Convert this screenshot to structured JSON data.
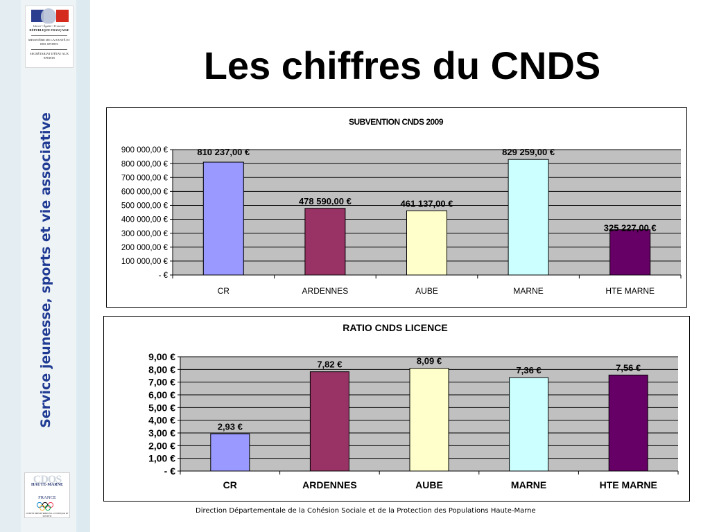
{
  "sidebar": {
    "logo_top": {
      "motto": "Liberté • Égalité • Fraternité",
      "republic": "RÉPUBLIQUE FRANÇAISE",
      "ministry": "MINISTÈRE DE LA SANTÉ ET DES SPORTS",
      "secretariat": "SECRÉTARIAT D'ÉTAT AUX SPORTS"
    },
    "vertical_title": "Service jeunesse, sports et vie associative",
    "logo_bottom": {
      "mark": "CDOS",
      "dept": "HAUTE-MARNE",
      "country": "FRANCE",
      "caption": "COMITÉ DÉPARTEMENTAL OLYMPIQUE ET SPORTIF"
    }
  },
  "slide": {
    "title": "Les chiffres du CNDS",
    "footer": "Direction Départementale de la Cohésion Sociale et de la Protection des Populations  Haute-Marne"
  },
  "colors": {
    "plot_bg": "#c0c0c0",
    "bars": [
      "#9999ff",
      "#993366",
      "#ffffcc",
      "#ccffff",
      "#660066"
    ]
  },
  "chart_data": [
    {
      "type": "bar",
      "title": "SUBVENTION CNDS 2009",
      "categories": [
        "CR",
        "ARDENNES",
        "AUBE",
        "MARNE",
        "HTE MARNE"
      ],
      "values": [
        810237,
        478590,
        461137,
        829259,
        325227
      ],
      "data_labels": [
        "810 237,00 €",
        "478 590,00 €",
        "461 137,00 €",
        "829 259,00 €",
        "325 227,00 €"
      ],
      "ylim": [
        0,
        900000
      ],
      "yticks": [
        0,
        100000,
        200000,
        300000,
        400000,
        500000,
        600000,
        700000,
        800000,
        900000
      ],
      "ytick_labels": [
        "-   €",
        "100 000,00 €",
        "200 000,00 €",
        "300 000,00 €",
        "400 000,00 €",
        "500 000,00 €",
        "600 000,00 €",
        "700 000,00 €",
        "800 000,00 €",
        "900 000,00 €"
      ],
      "grid": true,
      "legend": "none"
    },
    {
      "type": "bar",
      "title": "RATIO CNDS LICENCE",
      "categories": [
        "CR",
        "ARDENNES",
        "AUBE",
        "MARNE",
        "HTE MARNE"
      ],
      "values": [
        2.93,
        7.82,
        8.09,
        7.36,
        7.56
      ],
      "data_labels": [
        "2,93 €",
        "7,82 €",
        "8,09 €",
        "7,36 €",
        "7,56 €"
      ],
      "ylim": [
        0,
        9
      ],
      "yticks": [
        0,
        1,
        2,
        3,
        4,
        5,
        6,
        7,
        8,
        9
      ],
      "ytick_labels": [
        "-    €",
        "1,00 €",
        "2,00 €",
        "3,00 €",
        "4,00 €",
        "5,00 €",
        "6,00 €",
        "7,00 €",
        "8,00 €",
        "9,00 €"
      ],
      "grid": true,
      "legend": "none"
    }
  ]
}
